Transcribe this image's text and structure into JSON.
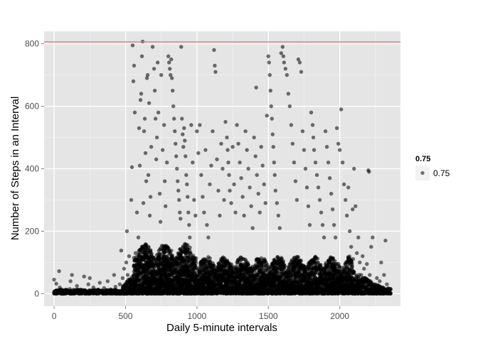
{
  "chart_data": {
    "type": "scatter",
    "title": "",
    "xlabel": "Daily 5-minute intervals",
    "ylabel": "Number of Steps in an Interval",
    "xlim": [
      -70,
      2425
    ],
    "ylim": [
      -40,
      840
    ],
    "x_ticks": [
      0,
      500,
      1000,
      1500,
      2000
    ],
    "x_tick_labels": [
      "0",
      "500",
      "1000",
      "1500",
      "2000"
    ],
    "y_ticks": [
      0,
      200,
      400,
      600,
      800
    ],
    "y_tick_labels": [
      "0",
      "200",
      "400",
      "600",
      "800"
    ],
    "grid": true,
    "panel_color": "#e5e5e5",
    "grid_color": "#ffffff",
    "point_color": "#000000",
    "point_alpha": 0.55,
    "hline": {
      "y": 806,
      "color": "#e8747c"
    },
    "legend": {
      "title": "0.75",
      "label": "0.75",
      "position": "right"
    },
    "series": [
      {
        "points": [
          [
            5,
            2
          ],
          [
            10,
            4
          ],
          [
            15,
            0
          ],
          [
            20,
            8
          ],
          [
            0,
            45
          ],
          [
            15,
            32
          ],
          [
            35,
            72
          ],
          [
            40,
            20
          ],
          [
            55,
            5
          ],
          [
            60,
            0
          ],
          [
            100,
            3
          ],
          [
            110,
            15
          ],
          [
            115,
            40
          ],
          [
            125,
            60
          ],
          [
            140,
            2
          ],
          [
            150,
            10
          ],
          [
            160,
            25
          ],
          [
            175,
            0
          ],
          [
            200,
            3
          ],
          [
            210,
            55
          ],
          [
            225,
            8
          ],
          [
            240,
            30
          ],
          [
            250,
            50
          ],
          [
            260,
            5
          ],
          [
            275,
            20
          ],
          [
            300,
            0
          ],
          [
            310,
            12
          ],
          [
            320,
            35
          ],
          [
            340,
            2
          ],
          [
            350,
            18
          ],
          [
            375,
            40
          ],
          [
            400,
            5
          ],
          [
            420,
            60
          ],
          [
            430,
            22
          ],
          [
            445,
            9
          ],
          [
            460,
            30
          ],
          [
            470,
            138
          ],
          [
            480,
            50
          ],
          [
            490,
            80
          ],
          [
            500,
            15
          ],
          [
            505,
            100
          ],
          [
            510,
            200
          ],
          [
            515,
            60
          ],
          [
            520,
            45
          ],
          [
            525,
            120
          ],
          [
            530,
            40
          ],
          [
            540,
            300
          ],
          [
            545,
            405
          ],
          [
            550,
            795
          ],
          [
            555,
            680
          ],
          [
            560,
            730
          ],
          [
            565,
            580
          ],
          [
            570,
            130
          ],
          [
            580,
            260
          ],
          [
            590,
            180
          ],
          [
            595,
            530
          ],
          [
            600,
            410
          ],
          [
            605,
            620
          ],
          [
            610,
            640
          ],
          [
            615,
            760
          ],
          [
            620,
            807
          ],
          [
            625,
            290
          ],
          [
            630,
            520
          ],
          [
            635,
            560
          ],
          [
            640,
            450
          ],
          [
            645,
            360
          ],
          [
            650,
            690
          ],
          [
            655,
            700
          ],
          [
            660,
            380
          ],
          [
            665,
            610
          ],
          [
            670,
            250
          ],
          [
            675,
            310
          ],
          [
            680,
            470
          ],
          [
            690,
            790
          ],
          [
            700,
            720
          ],
          [
            705,
            650
          ],
          [
            710,
            560
          ],
          [
            715,
            430
          ],
          [
            720,
            500
          ],
          [
            725,
            740
          ],
          [
            730,
            580
          ],
          [
            740,
            320
          ],
          [
            745,
            230
          ],
          [
            750,
            700
          ],
          [
            760,
            460
          ],
          [
            770,
            540
          ],
          [
            775,
            360
          ],
          [
            780,
            280
          ],
          [
            790,
            420
          ],
          [
            800,
            760
          ],
          [
            805,
            740
          ],
          [
            810,
            720
          ],
          [
            815,
            700
          ],
          [
            820,
            750
          ],
          [
            825,
            690
          ],
          [
            830,
            650
          ],
          [
            835,
            600
          ],
          [
            840,
            560
          ],
          [
            845,
            520
          ],
          [
            850,
            480
          ],
          [
            855,
            440
          ],
          [
            860,
            400
          ],
          [
            865,
            360
          ],
          [
            870,
            330
          ],
          [
            875,
            300
          ],
          [
            880,
            260
          ],
          [
            885,
            240
          ],
          [
            890,
            790
          ],
          [
            895,
            560
          ],
          [
            900,
            510
          ],
          [
            905,
            470
          ],
          [
            910,
            530
          ],
          [
            915,
            490
          ],
          [
            920,
            440
          ],
          [
            925,
            380
          ],
          [
            930,
            350
          ],
          [
            935,
            310
          ],
          [
            940,
            260
          ],
          [
            945,
            220
          ],
          [
            950,
            180
          ],
          [
            960,
            540
          ],
          [
            970,
            420
          ],
          [
            980,
            300
          ],
          [
            990,
            250
          ],
          [
            1000,
            520
          ],
          [
            1010,
            450
          ],
          [
            1020,
            540
          ],
          [
            1030,
            380
          ],
          [
            1040,
            310
          ],
          [
            1050,
            260
          ],
          [
            1060,
            460
          ],
          [
            1070,
            220
          ],
          [
            1080,
            180
          ],
          [
            1090,
            350
          ],
          [
            1100,
            410
          ],
          [
            1110,
            520
          ],
          [
            1120,
            780
          ],
          [
            1125,
            730
          ],
          [
            1130,
            710
          ],
          [
            1140,
            430
          ],
          [
            1150,
            330
          ],
          [
            1160,
            250
          ],
          [
            1170,
            480
          ],
          [
            1180,
            400
          ],
          [
            1190,
            300
          ],
          [
            1200,
            550
          ],
          [
            1210,
            500
          ],
          [
            1215,
            460
          ],
          [
            1220,
            420
          ],
          [
            1225,
            380
          ],
          [
            1230,
            330
          ],
          [
            1240,
            290
          ],
          [
            1250,
            470
          ],
          [
            1260,
            350
          ],
          [
            1270,
            260
          ],
          [
            1280,
            540
          ],
          [
            1290,
            480
          ],
          [
            1300,
            420
          ],
          [
            1310,
            370
          ],
          [
            1320,
            310
          ],
          [
            1330,
            250
          ],
          [
            1340,
            520
          ],
          [
            1350,
            460
          ],
          [
            1360,
            400
          ],
          [
            1370,
            340
          ],
          [
            1380,
            280
          ],
          [
            1390,
            210
          ],
          [
            1400,
            500
          ],
          [
            1410,
            440
          ],
          [
            1415,
            660
          ],
          [
            1420,
            380
          ],
          [
            1430,
            320
          ],
          [
            1440,
            260
          ],
          [
            1450,
            470
          ],
          [
            1460,
            410
          ],
          [
            1470,
            350
          ],
          [
            1480,
            290
          ],
          [
            1490,
            570
          ],
          [
            1500,
            760
          ],
          [
            1505,
            740
          ],
          [
            1510,
            700
          ],
          [
            1515,
            650
          ],
          [
            1520,
            600
          ],
          [
            1525,
            560
          ],
          [
            1530,
            510
          ],
          [
            1535,
            470
          ],
          [
            1540,
            420
          ],
          [
            1545,
            380
          ],
          [
            1550,
            330
          ],
          [
            1560,
            290
          ],
          [
            1570,
            250
          ],
          [
            1580,
            210
          ],
          [
            1590,
            770
          ],
          [
            1600,
            790
          ],
          [
            1605,
            760
          ],
          [
            1610,
            740
          ],
          [
            1620,
            720
          ],
          [
            1630,
            700
          ],
          [
            1640,
            640
          ],
          [
            1650,
            600
          ],
          [
            1660,
            540
          ],
          [
            1670,
            480
          ],
          [
            1680,
            420
          ],
          [
            1690,
            360
          ],
          [
            1700,
            300
          ],
          [
            1710,
            750
          ],
          [
            1720,
            740
          ],
          [
            1730,
            710
          ],
          [
            1740,
            520
          ],
          [
            1750,
            460
          ],
          [
            1760,
            400
          ],
          [
            1770,
            340
          ],
          [
            1780,
            280
          ],
          [
            1790,
            220
          ],
          [
            1800,
            580
          ],
          [
            1810,
            540
          ],
          [
            1815,
            500
          ],
          [
            1820,
            460
          ],
          [
            1830,
            420
          ],
          [
            1840,
            380
          ],
          [
            1850,
            340
          ],
          [
            1860,
            300
          ],
          [
            1870,
            260
          ],
          [
            1880,
            220
          ],
          [
            1890,
            180
          ],
          [
            1900,
            520
          ],
          [
            1910,
            470
          ],
          [
            1920,
            420
          ],
          [
            1930,
            370
          ],
          [
            1940,
            320
          ],
          [
            1950,
            270
          ],
          [
            1960,
            220
          ],
          [
            1970,
            180
          ],
          [
            1980,
            530
          ],
          [
            1990,
            480
          ],
          [
            2000,
            460
          ],
          [
            2010,
            590
          ],
          [
            2020,
            420
          ],
          [
            2030,
            350
          ],
          [
            2040,
            300
          ],
          [
            2050,
            250
          ],
          [
            2060,
            340
          ],
          [
            2070,
            200
          ],
          [
            2080,
            150
          ],
          [
            2090,
            270
          ],
          [
            2100,
            400
          ],
          [
            2110,
            280
          ],
          [
            2120,
            130
          ],
          [
            2130,
            180
          ],
          [
            2140,
            100
          ],
          [
            2150,
            60
          ],
          [
            2160,
            120
          ],
          [
            2170,
            80
          ],
          [
            2180,
            40
          ],
          [
            2190,
            95
          ],
          [
            2200,
            395
          ],
          [
            2205,
            390
          ],
          [
            2210,
            60
          ],
          [
            2220,
            150
          ],
          [
            2230,
            180
          ],
          [
            2240,
            30
          ],
          [
            2250,
            20
          ],
          [
            2260,
            50
          ],
          [
            2270,
            10
          ],
          [
            2280,
            40
          ],
          [
            2290,
            100
          ],
          [
            2300,
            20
          ],
          [
            2310,
            60
          ],
          [
            2320,
            170
          ],
          [
            2330,
            30
          ],
          [
            2340,
            5
          ],
          [
            2350,
            10
          ]
        ]
      }
    ]
  }
}
